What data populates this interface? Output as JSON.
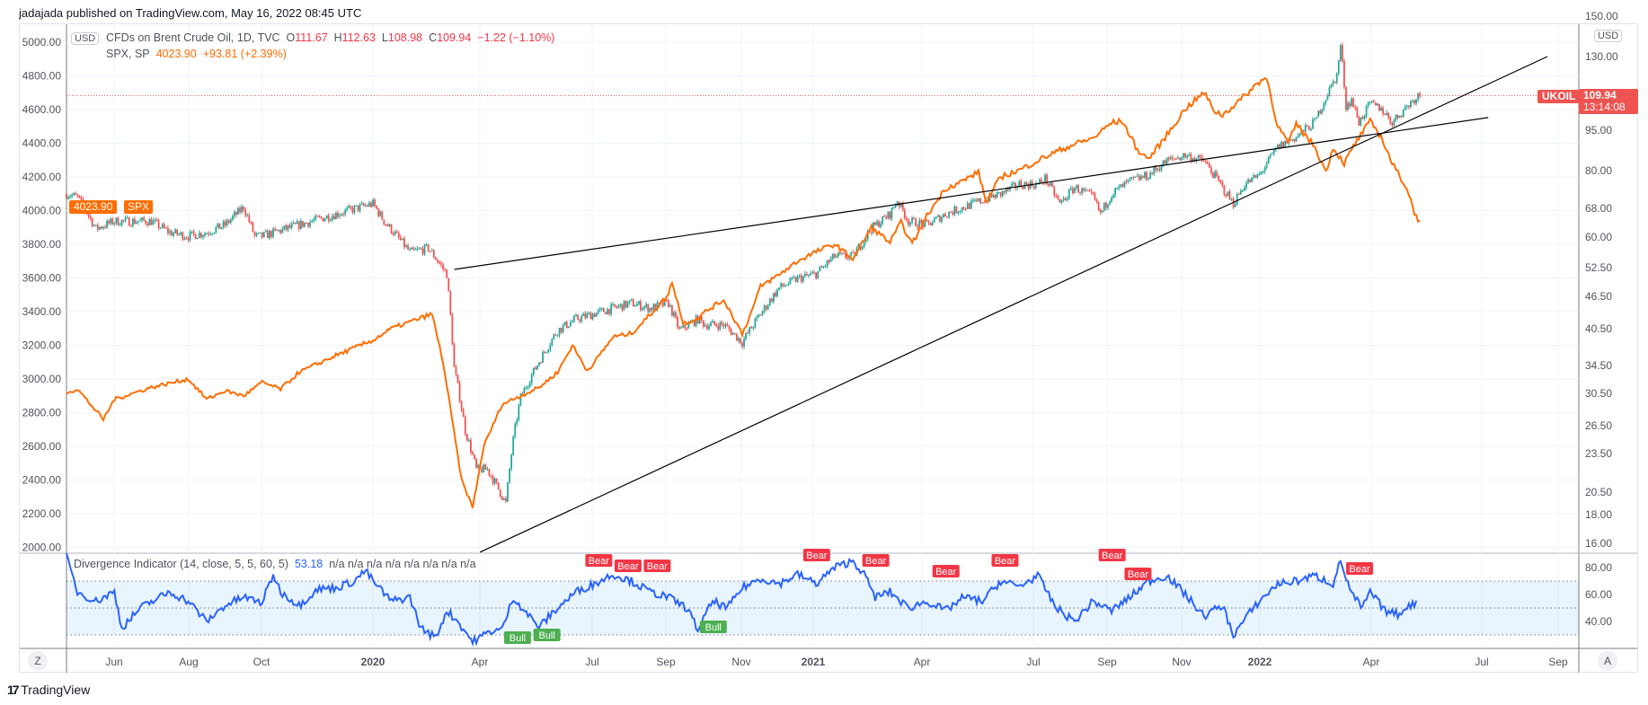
{
  "publish_line": "jadajada published on TradingView.com, May 16, 2022 08:45 UTC",
  "legend": {
    "oil": {
      "name": "CFDs on Brent Crude Oil, 1D, TVC",
      "o_label": "O",
      "o": "111.67",
      "h_label": "H",
      "h": "112.63",
      "l_label": "L",
      "l": "108.98",
      "c_label": "C",
      "c": "109.94",
      "change": "−1.22 (−1.10%)"
    },
    "spx": {
      "name": "SPX, SP",
      "price": "4023.90",
      "change": "+93.81 (+2.39%)"
    },
    "indicator": {
      "name": "Divergence Indicator (14, close, 5, 5, 60, 5)",
      "value": "53.18",
      "na": "n/a  n/a  n/a  n/a  n/a  n/a  n/a  n/a"
    }
  },
  "currency": "USD",
  "left_axis": [
    "5000.00",
    "4800.00",
    "4600.00",
    "4400.00",
    "4200.00",
    "4000.00",
    "3800.00",
    "3600.00",
    "3400.00",
    "3200.00",
    "3000.00",
    "2800.00",
    "2600.00",
    "2400.00",
    "2200.00",
    "2000.00"
  ],
  "right_axis": [
    "150.00",
    "130.00",
    "95.00",
    "80.00",
    "68.00",
    "60.00",
    "52.50",
    "46.50",
    "40.50",
    "34.50",
    "30.50",
    "26.50",
    "23.50",
    "20.50",
    "18.00",
    "16.00"
  ],
  "indicator_axis": [
    "80.00",
    "60.00",
    "40.00"
  ],
  "time_axis": [
    "Jun",
    "Aug",
    "Oct",
    "2020",
    "Apr",
    "Jul",
    "Sep",
    "Nov",
    "2021",
    "Apr",
    "Jul",
    "Sep",
    "Nov",
    "2022",
    "Apr",
    "Jul",
    "Sep"
  ],
  "price_labels": {
    "spx_price": "4023.90",
    "spx_symbol": "SPX",
    "oil_symbol": "UKOIL",
    "oil_price": "109.94",
    "countdown": "13:14:08"
  },
  "buttons": {
    "z": "Z",
    "a": "A"
  },
  "brand": "TradingView",
  "signals": {
    "bear": "Bear",
    "bull": "Bull"
  },
  "colors": {
    "spx": "#ff6d00",
    "up": "#26a69a",
    "down": "#ef5350",
    "indicator": "#2962ff",
    "bear": "#f23645",
    "bull": "#4caf50"
  },
  "chart_data": {
    "type": "line",
    "x_unit": "months since 2020-01",
    "series": [
      {
        "name": "SPX",
        "axis": "left",
        "points": [
          [
            -8.3,
            2920
          ],
          [
            -8,
            2940
          ],
          [
            -7.3,
            2760
          ],
          [
            -7,
            2880
          ],
          [
            -6,
            2950
          ],
          [
            -5,
            3000
          ],
          [
            -4.5,
            2880
          ],
          [
            -4,
            2930
          ],
          [
            -3.5,
            2900
          ],
          [
            -3,
            2980
          ],
          [
            -2.5,
            2940
          ],
          [
            -2,
            3040
          ],
          [
            -1,
            3140
          ],
          [
            0,
            3230
          ],
          [
            0.5,
            3300
          ],
          [
            1.6,
            3386
          ],
          [
            1.9,
            3100
          ],
          [
            2.4,
            2400
          ],
          [
            2.7,
            2237
          ],
          [
            3,
            2600
          ],
          [
            3.5,
            2850
          ],
          [
            4,
            2900
          ],
          [
            4.5,
            2950
          ],
          [
            5,
            3040
          ],
          [
            5.4,
            3200
          ],
          [
            5.8,
            3050
          ],
          [
            6,
            3100
          ],
          [
            6.5,
            3250
          ],
          [
            7,
            3270
          ],
          [
            7.5,
            3380
          ],
          [
            8,
            3500
          ],
          [
            8.1,
            3580
          ],
          [
            8.4,
            3330
          ],
          [
            8.8,
            3360
          ],
          [
            9,
            3400
          ],
          [
            9.5,
            3470
          ],
          [
            10,
            3270
          ],
          [
            10.2,
            3370
          ],
          [
            10.5,
            3550
          ],
          [
            11,
            3620
          ],
          [
            11.5,
            3700
          ],
          [
            12,
            3756
          ],
          [
            12.5,
            3800
          ],
          [
            13,
            3714
          ],
          [
            13.5,
            3900
          ],
          [
            14,
            3811
          ],
          [
            14.3,
            3930
          ],
          [
            14.6,
            3800
          ],
          [
            15,
            3970
          ],
          [
            15.5,
            4130
          ],
          [
            16,
            4180
          ],
          [
            16.4,
            4230
          ],
          [
            16.6,
            4050
          ],
          [
            17,
            4200
          ],
          [
            17.5,
            4240
          ],
          [
            18,
            4297
          ],
          [
            18.5,
            4350
          ],
          [
            19,
            4395
          ],
          [
            19.5,
            4430
          ],
          [
            20,
            4522
          ],
          [
            20.3,
            4530
          ],
          [
            20.7,
            4360
          ],
          [
            21,
            4307
          ],
          [
            21.3,
            4390
          ],
          [
            21.6,
            4480
          ],
          [
            22,
            4605
          ],
          [
            22.5,
            4700
          ],
          [
            22.8,
            4590
          ],
          [
            23,
            4567
          ],
          [
            23.5,
            4660
          ],
          [
            24,
            4766
          ],
          [
            24.2,
            4790
          ],
          [
            24.5,
            4500
          ],
          [
            24.8,
            4400
          ],
          [
            25,
            4515
          ],
          [
            25.5,
            4380
          ],
          [
            25.8,
            4230
          ],
          [
            26,
            4373
          ],
          [
            26.3,
            4280
          ],
          [
            26.6,
            4400
          ],
          [
            27,
            4530
          ],
          [
            27.3,
            4440
          ],
          [
            27.6,
            4280
          ],
          [
            28,
            4131
          ],
          [
            28.2,
            3990
          ],
          [
            28.35,
            3930
          ],
          [
            28.4,
            4023.9
          ]
        ]
      },
      {
        "name": "UKOIL",
        "axis": "right",
        "points": [
          [
            -8.3,
            72
          ],
          [
            -8,
            71
          ],
          [
            -7.5,
            62
          ],
          [
            -7,
            64
          ],
          [
            -6,
            64
          ],
          [
            -5.5,
            61
          ],
          [
            -5,
            60
          ],
          [
            -4.5,
            61
          ],
          [
            -4,
            63
          ],
          [
            -3.5,
            68
          ],
          [
            -3.2,
            60
          ],
          [
            -3,
            60
          ],
          [
            -2,
            63
          ],
          [
            -1,
            66
          ],
          [
            0,
            69
          ],
          [
            0.3,
            64
          ],
          [
            1,
            56
          ],
          [
            1.5,
            57
          ],
          [
            2,
            51
          ],
          [
            2.2,
            34
          ],
          [
            2.5,
            26
          ],
          [
            2.8,
            22
          ],
          [
            3.1,
            22
          ],
          [
            3.6,
            19
          ],
          [
            3.8,
            25
          ],
          [
            4,
            30
          ],
          [
            4.5,
            35
          ],
          [
            5,
            40
          ],
          [
            5.5,
            42
          ],
          [
            6,
            43
          ],
          [
            6.5,
            44
          ],
          [
            7,
            45
          ],
          [
            7.5,
            44
          ],
          [
            8,
            45
          ],
          [
            8.3,
            40
          ],
          [
            8.8,
            42
          ],
          [
            9,
            41
          ],
          [
            9.5,
            41
          ],
          [
            10,
            38
          ],
          [
            10.5,
            43
          ],
          [
            11,
            48
          ],
          [
            11.5,
            50
          ],
          [
            12,
            51
          ],
          [
            12.5,
            55
          ],
          [
            13,
            55
          ],
          [
            13.5,
            62
          ],
          [
            14,
            66
          ],
          [
            14.2,
            70
          ],
          [
            14.5,
            64
          ],
          [
            15,
            63
          ],
          [
            15.5,
            66
          ],
          [
            16,
            68
          ],
          [
            16.5,
            70
          ],
          [
            17,
            72
          ],
          [
            17.5,
            75
          ],
          [
            18,
            75
          ],
          [
            18.2,
            77
          ],
          [
            18.6,
            69
          ],
          [
            19,
            74
          ],
          [
            19.5,
            71
          ],
          [
            19.7,
            66
          ],
          [
            20,
            72
          ],
          [
            20.5,
            76
          ],
          [
            21,
            78
          ],
          [
            21.5,
            83
          ],
          [
            22,
            85
          ],
          [
            22.5,
            83
          ],
          [
            23,
            74
          ],
          [
            23.3,
            69
          ],
          [
            23.6,
            75
          ],
          [
            24,
            78
          ],
          [
            24.5,
            88
          ],
          [
            25,
            92
          ],
          [
            25.5,
            98
          ],
          [
            26.1,
            120
          ],
          [
            26.2,
            136
          ],
          [
            26.35,
            105
          ],
          [
            26.5,
            108
          ],
          [
            26.7,
            98
          ],
          [
            27,
            106
          ],
          [
            27.3,
            104
          ],
          [
            27.6,
            98
          ],
          [
            28,
            105
          ],
          [
            28.3,
            110
          ],
          [
            28.4,
            109.94
          ]
        ]
      }
    ],
    "indicator": {
      "name": "Divergence Indicator",
      "band": [
        30,
        70
      ],
      "midline": 50,
      "points": [
        [
          -8.3,
          88
        ],
        [
          -8,
          62
        ],
        [
          -7.5,
          55
        ],
        [
          -7,
          62
        ],
        [
          -6.8,
          35
        ],
        [
          -6.3,
          50
        ],
        [
          -5.5,
          62
        ],
        [
          -5,
          55
        ],
        [
          -4.5,
          40
        ],
        [
          -4,
          52
        ],
        [
          -3.5,
          58
        ],
        [
          -3,
          54
        ],
        [
          -2.7,
          75
        ],
        [
          -2.5,
          62
        ],
        [
          -2,
          52
        ],
        [
          -1.5,
          64
        ],
        [
          -1,
          65
        ],
        [
          -0.5,
          70
        ],
        [
          -0.2,
          78
        ],
        [
          0,
          70
        ],
        [
          0.5,
          55
        ],
        [
          1,
          58
        ],
        [
          1.3,
          35
        ],
        [
          1.7,
          28
        ],
        [
          2,
          48
        ],
        [
          2.3,
          40
        ],
        [
          2.7,
          25
        ],
        [
          3.2,
          33
        ],
        [
          3.5,
          34
        ],
        [
          3.8,
          58
        ],
        [
          4.2,
          45
        ],
        [
          4.5,
          36
        ],
        [
          5,
          50
        ],
        [
          5.5,
          62
        ],
        [
          6,
          68
        ],
        [
          6.5,
          75
        ],
        [
          7,
          70
        ],
        [
          7.5,
          62
        ],
        [
          8,
          58
        ],
        [
          8.5,
          50
        ],
        [
          8.8,
          34
        ],
        [
          9.2,
          55
        ],
        [
          9.6,
          50
        ],
        [
          10,
          65
        ],
        [
          10.5,
          72
        ],
        [
          11,
          68
        ],
        [
          11.5,
          75
        ],
        [
          12,
          68
        ],
        [
          12.5,
          80
        ],
        [
          13,
          85
        ],
        [
          13.3,
          75
        ],
        [
          13.6,
          58
        ],
        [
          14,
          62
        ],
        [
          14.5,
          50
        ],
        [
          15,
          55
        ],
        [
          15.5,
          48
        ],
        [
          16,
          58
        ],
        [
          16.5,
          55
        ],
        [
          17,
          70
        ],
        [
          17.5,
          66
        ],
        [
          18,
          74
        ],
        [
          18.5,
          50
        ],
        [
          19,
          40
        ],
        [
          19.5,
          55
        ],
        [
          20,
          48
        ],
        [
          20.5,
          58
        ],
        [
          21,
          70
        ],
        [
          21.5,
          74
        ],
        [
          22,
          60
        ],
        [
          22.5,
          44
        ],
        [
          23,
          52
        ],
        [
          23.3,
          30
        ],
        [
          23.7,
          45
        ],
        [
          24,
          55
        ],
        [
          24.5,
          68
        ],
        [
          25,
          70
        ],
        [
          25.5,
          74
        ],
        [
          26,
          68
        ],
        [
          26.2,
          85
        ],
        [
          26.5,
          60
        ],
        [
          26.8,
          50
        ],
        [
          27,
          62
        ],
        [
          27.4,
          48
        ],
        [
          27.8,
          45
        ],
        [
          28,
          52
        ],
        [
          28.3,
          53
        ]
      ],
      "bear_signals": [
        [
          5.8,
          78
        ],
        [
          6.3,
          74
        ],
        [
          6.7,
          74
        ],
        [
          11.7,
          82
        ],
        [
          13.3,
          78
        ],
        [
          15.2,
          70
        ],
        [
          16.8,
          78
        ],
        [
          19.7,
          82
        ],
        [
          20.4,
          68
        ],
        [
          26.4,
          72
        ]
      ],
      "bull_signals": [
        [
          3.6,
          26
        ],
        [
          4.2,
          28
        ],
        [
          8.9,
          34
        ]
      ]
    },
    "trendlines": [
      {
        "from": [
          2.2,
          52
        ],
        "to": [
          30.2,
          100
        ]
      },
      {
        "from": [
          2.9,
          15.4
        ],
        "to": [
          31.8,
          130
        ]
      }
    ]
  }
}
